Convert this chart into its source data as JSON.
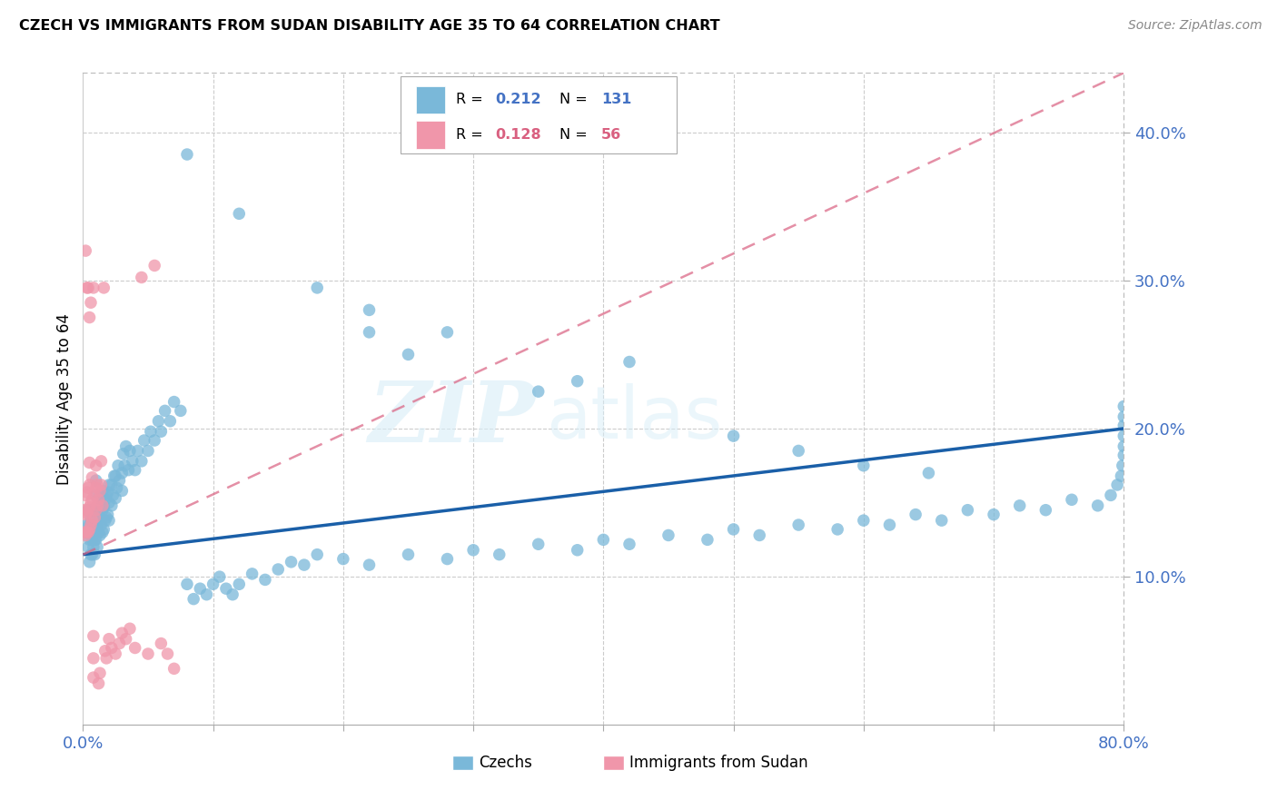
{
  "title": "CZECH VS IMMIGRANTS FROM SUDAN DISABILITY AGE 35 TO 64 CORRELATION CHART",
  "source": "Source: ZipAtlas.com",
  "ylabel": "Disability Age 35 to 64",
  "xlim": [
    0.0,
    0.8
  ],
  "ylim": [
    0.0,
    0.44
  ],
  "legend_czechs_R": "0.212",
  "legend_czechs_N": "131",
  "legend_sudan_R": "0.128",
  "legend_sudan_N": "56",
  "czech_color": "#7ab8d9",
  "sudan_color": "#f096aa",
  "czech_line_color": "#1a5fa8",
  "sudan_line_color": "#d96080",
  "watermark_zip": "ZIP",
  "watermark_atlas": "atlas",
  "czech_line_start_y": 0.115,
  "czech_line_end_y": 0.2,
  "sudan_line_start_y": 0.115,
  "sudan_line_end_y": 0.44,
  "czechs_x": [
    0.003,
    0.003,
    0.004,
    0.004,
    0.005,
    0.005,
    0.005,
    0.006,
    0.006,
    0.006,
    0.007,
    0.007,
    0.007,
    0.007,
    0.008,
    0.008,
    0.008,
    0.009,
    0.009,
    0.009,
    0.01,
    0.01,
    0.01,
    0.01,
    0.01,
    0.011,
    0.011,
    0.011,
    0.012,
    0.012,
    0.012,
    0.013,
    0.013,
    0.013,
    0.014,
    0.014,
    0.015,
    0.015,
    0.015,
    0.016,
    0.016,
    0.017,
    0.017,
    0.018,
    0.018,
    0.019,
    0.019,
    0.02,
    0.02,
    0.02,
    0.022,
    0.022,
    0.023,
    0.024,
    0.025,
    0.025,
    0.026,
    0.027,
    0.028,
    0.03,
    0.03,
    0.031,
    0.032,
    0.033,
    0.035,
    0.036,
    0.038,
    0.04,
    0.042,
    0.045,
    0.047,
    0.05,
    0.052,
    0.055,
    0.058,
    0.06,
    0.063,
    0.067,
    0.07,
    0.075,
    0.08,
    0.085,
    0.09,
    0.095,
    0.1,
    0.105,
    0.11,
    0.115,
    0.12,
    0.13,
    0.14,
    0.15,
    0.16,
    0.17,
    0.18,
    0.2,
    0.22,
    0.25,
    0.28,
    0.3,
    0.32,
    0.35,
    0.38,
    0.4,
    0.42,
    0.45,
    0.48,
    0.5,
    0.52,
    0.55,
    0.58,
    0.6,
    0.62,
    0.64,
    0.66,
    0.68,
    0.7,
    0.72,
    0.74,
    0.76,
    0.78,
    0.79,
    0.795,
    0.798,
    0.799,
    0.8,
    0.8,
    0.8,
    0.8,
    0.8,
    0.8
  ],
  "czechs_y": [
    0.13,
    0.135,
    0.12,
    0.145,
    0.11,
    0.125,
    0.135,
    0.115,
    0.13,
    0.14,
    0.115,
    0.125,
    0.135,
    0.145,
    0.12,
    0.13,
    0.14,
    0.115,
    0.125,
    0.135,
    0.125,
    0.135,
    0.145,
    0.155,
    0.165,
    0.12,
    0.135,
    0.148,
    0.13,
    0.142,
    0.153,
    0.128,
    0.14,
    0.152,
    0.135,
    0.148,
    0.13,
    0.145,
    0.158,
    0.132,
    0.147,
    0.138,
    0.152,
    0.14,
    0.155,
    0.142,
    0.157,
    0.138,
    0.15,
    0.162,
    0.148,
    0.162,
    0.155,
    0.168,
    0.153,
    0.168,
    0.16,
    0.175,
    0.165,
    0.158,
    0.17,
    0.183,
    0.175,
    0.188,
    0.172,
    0.185,
    0.178,
    0.172,
    0.185,
    0.178,
    0.192,
    0.185,
    0.198,
    0.192,
    0.205,
    0.198,
    0.212,
    0.205,
    0.218,
    0.212,
    0.095,
    0.085,
    0.092,
    0.088,
    0.095,
    0.1,
    0.092,
    0.088,
    0.095,
    0.102,
    0.098,
    0.105,
    0.11,
    0.108,
    0.115,
    0.112,
    0.108,
    0.115,
    0.112,
    0.118,
    0.115,
    0.122,
    0.118,
    0.125,
    0.122,
    0.128,
    0.125,
    0.132,
    0.128,
    0.135,
    0.132,
    0.138,
    0.135,
    0.142,
    0.138,
    0.145,
    0.142,
    0.148,
    0.145,
    0.152,
    0.148,
    0.155,
    0.162,
    0.168,
    0.175,
    0.182,
    0.188,
    0.195,
    0.202,
    0.208,
    0.215
  ],
  "sudan_x": [
    0.001,
    0.001,
    0.002,
    0.002,
    0.002,
    0.003,
    0.003,
    0.003,
    0.003,
    0.004,
    0.004,
    0.004,
    0.005,
    0.005,
    0.005,
    0.005,
    0.006,
    0.006,
    0.006,
    0.007,
    0.007,
    0.007,
    0.008,
    0.008,
    0.008,
    0.009,
    0.009,
    0.01,
    0.01,
    0.01,
    0.011,
    0.011,
    0.012,
    0.012,
    0.013,
    0.013,
    0.014,
    0.014,
    0.015,
    0.016,
    0.017,
    0.018,
    0.02,
    0.022,
    0.025,
    0.028,
    0.03,
    0.033,
    0.036,
    0.04,
    0.045,
    0.05,
    0.055,
    0.06,
    0.065,
    0.07
  ],
  "sudan_y": [
    0.13,
    0.145,
    0.128,
    0.142,
    0.155,
    0.13,
    0.143,
    0.157,
    0.295,
    0.13,
    0.145,
    0.16,
    0.132,
    0.147,
    0.162,
    0.177,
    0.135,
    0.15,
    0.285,
    0.138,
    0.152,
    0.167,
    0.295,
    0.032,
    0.045,
    0.14,
    0.155,
    0.145,
    0.16,
    0.175,
    0.148,
    0.162,
    0.152,
    0.028,
    0.158,
    0.035,
    0.162,
    0.178,
    0.148,
    0.295,
    0.05,
    0.045,
    0.058,
    0.052,
    0.048,
    0.055,
    0.062,
    0.058,
    0.065,
    0.052,
    0.302,
    0.048,
    0.31,
    0.055,
    0.048,
    0.038
  ]
}
